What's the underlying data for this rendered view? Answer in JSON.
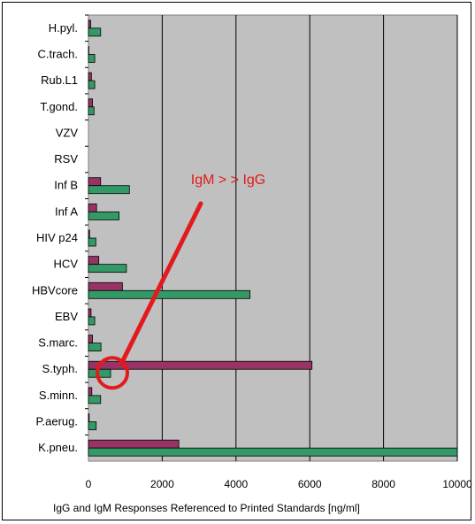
{
  "chart_data": {
    "type": "bar",
    "orientation": "horizontal",
    "categories": [
      "H.pyl.",
      "C.trach.",
      "Rub.L1",
      "T.gond.",
      "VZV",
      "RSV",
      "Inf B",
      "Inf A",
      "HIV p24",
      "HCV",
      "HBVcore",
      "EBV",
      "S.marc.",
      "S.typh.",
      "S.minn.",
      "P.aerug.",
      "K.pneu."
    ],
    "series": [
      {
        "name": "",
        "color": "#993366",
        "values": [
          60,
          10,
          80,
          110,
          0,
          0,
          330,
          220,
          30,
          280,
          920,
          70,
          110,
          6060,
          90,
          20,
          2450
        ]
      },
      {
        "name": "",
        "color": "#339966",
        "values": [
          330,
          170,
          170,
          150,
          0,
          0,
          1110,
          830,
          200,
          1030,
          4380,
          170,
          340,
          600,
          330,
          210,
          10000
        ]
      }
    ],
    "xlim": [
      0,
      10000
    ],
    "xticks": [
      "0",
      "2000",
      "4000",
      "6000",
      "8000",
      "10000"
    ],
    "xtick_values": [
      0,
      2000,
      4000,
      6000,
      8000,
      10000
    ],
    "xlabel": "IgG and IgM Responses Referenced to Printed Standards [ng/ml]",
    "ylabel": "",
    "title": "",
    "grid": "vertical",
    "plot_background": "#c0c0c0",
    "annotation": {
      "text": "IgM > > IgG",
      "color": "#e31a1c",
      "target_category": "S.typh."
    }
  }
}
